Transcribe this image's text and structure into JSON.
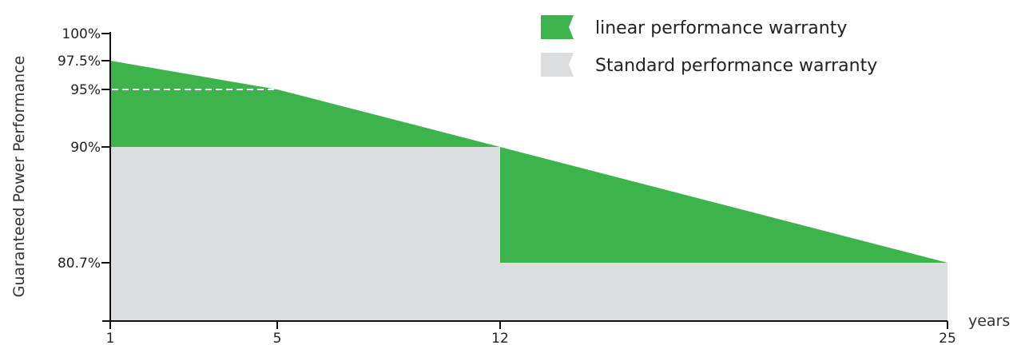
{
  "chart_data": {
    "type": "area",
    "ylabel": "Guaranteed Power Performance",
    "xlabel": "years",
    "x_ticks": [
      1,
      5,
      12,
      25
    ],
    "y_ticks": [
      {
        "value": 100,
        "label": "100%"
      },
      {
        "value": 97.5,
        "label": "97.5%"
      },
      {
        "value": 95,
        "label": "95%"
      },
      {
        "value": 90,
        "label": "90%"
      },
      {
        "value": 80.7,
        "label": "80.7%"
      }
    ],
    "series": [
      {
        "name": "linear performance warranty",
        "color": "#3cb44b",
        "points": [
          {
            "x": 1,
            "y": 97.5
          },
          {
            "x": 5,
            "y": 95
          },
          {
            "x": 12,
            "y": 90
          },
          {
            "x": 25,
            "y": 80.7
          }
        ]
      },
      {
        "name": "Standard performance warranty",
        "color": "#dcdddf",
        "steps": [
          {
            "x_start": 1,
            "x_end": 12,
            "y": 90
          },
          {
            "x_start": 12,
            "x_end": 25,
            "y": 80.7
          }
        ]
      }
    ],
    "reference_line": {
      "y": 95,
      "x_start": 1,
      "x_end": 5,
      "style": "dashed"
    },
    "legend_position": "top-right"
  }
}
